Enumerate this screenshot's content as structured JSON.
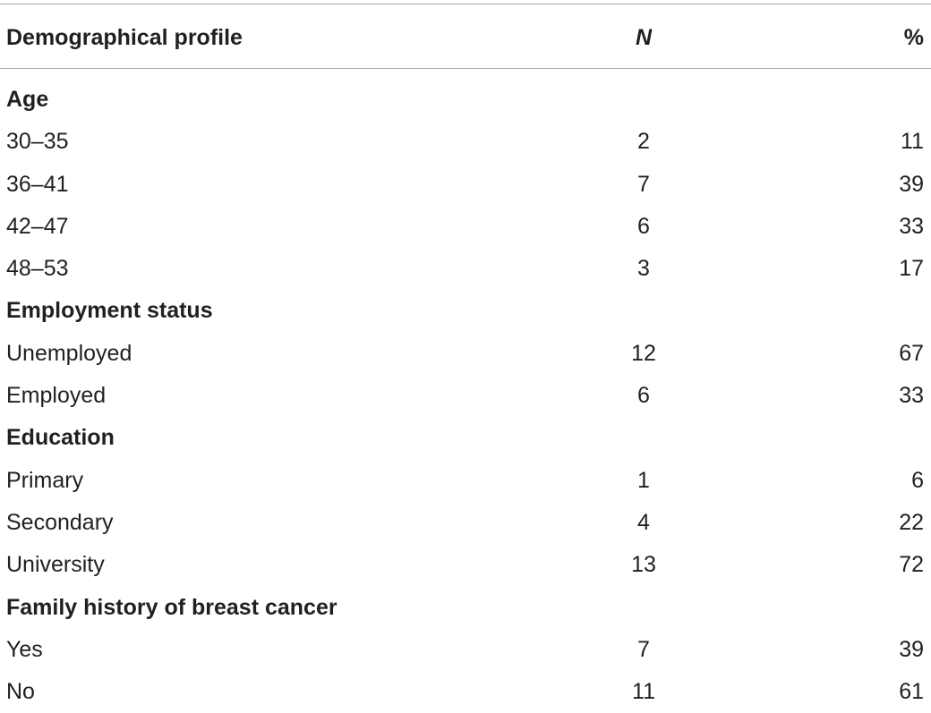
{
  "table": {
    "headers": {
      "profile": "Demographical profile",
      "n": "N",
      "pct": "%"
    },
    "rows": [
      {
        "label": "Age",
        "n": "",
        "pct": "",
        "section": true
      },
      {
        "label": "30–35",
        "n": "2",
        "pct": "11",
        "section": false
      },
      {
        "label": "36–41",
        "n": "7",
        "pct": "39",
        "section": false
      },
      {
        "label": "42–47",
        "n": "6",
        "pct": "33",
        "section": false
      },
      {
        "label": "48–53",
        "n": "3",
        "pct": "17",
        "section": false
      },
      {
        "label": "Employment status",
        "n": "",
        "pct": "",
        "section": true
      },
      {
        "label": "Unemployed",
        "n": "12",
        "pct": "67",
        "section": false
      },
      {
        "label": "Employed",
        "n": "6",
        "pct": "33",
        "section": false
      },
      {
        "label": "Education",
        "n": "",
        "pct": "",
        "section": true
      },
      {
        "label": "Primary",
        "n": "1",
        "pct": "6",
        "section": false
      },
      {
        "label": "Secondary",
        "n": "4",
        "pct": "22",
        "section": false
      },
      {
        "label": "University",
        "n": "13",
        "pct": "72",
        "section": false
      },
      {
        "label": "Family history of breast cancer",
        "n": "",
        "pct": "",
        "section": true
      },
      {
        "label": "Yes",
        "n": "7",
        "pct": "39",
        "section": false
      },
      {
        "label": "No",
        "n": "11",
        "pct": "61",
        "section": false
      }
    ]
  }
}
